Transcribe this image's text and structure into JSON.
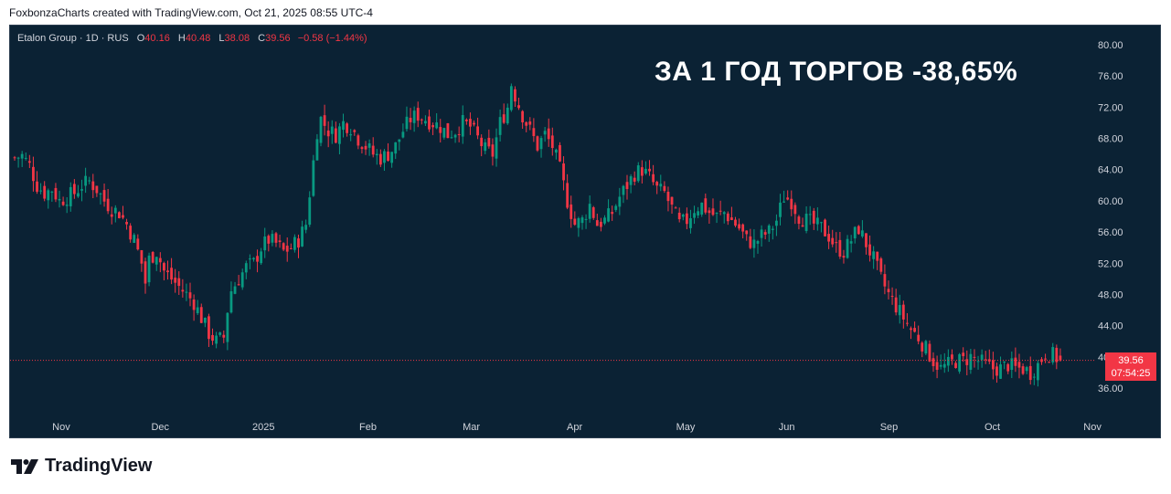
{
  "header": {
    "credit": "FoxbonzaCharts created with TradingView.com, Oct 21, 2025 08:55 UTC-4"
  },
  "legend": {
    "symbol": "Etalon Group · 1D · RUS",
    "open_label": "O",
    "open": "40.16",
    "high_label": "H",
    "high": "40.48",
    "low_label": "L",
    "low": "38.08",
    "close_label": "C",
    "close": "39.56",
    "change": "−0.58 (−1.44%)"
  },
  "overlay": {
    "title": "ЗА 1 ГОД ТОРГОВ -38,65%"
  },
  "price_badge": {
    "price": "39.56",
    "countdown": "07:54:25"
  },
  "footer": {
    "brand": "TradingView"
  },
  "colors": {
    "background": "#0b2234",
    "up": "#089981",
    "down": "#f23645",
    "text": "#d1d4dc"
  },
  "chart_data": {
    "type": "candlestick",
    "y_axis": {
      "min": 34,
      "max": 82,
      "ticks": [
        "80.00",
        "76.00",
        "72.00",
        "68.00",
        "64.00",
        "60.00",
        "56.00",
        "52.00",
        "48.00",
        "44.00",
        "40.00",
        "36.00"
      ]
    },
    "x_axis": {
      "labels": [
        "Nov",
        "Dec",
        "2025",
        "Feb",
        "Mar",
        "Apr",
        "May",
        "Jun",
        "Sep",
        "Oct",
        "Nov"
      ],
      "label_positions": [
        0.047,
        0.138,
        0.233,
        0.329,
        0.424,
        0.519,
        0.621,
        0.714,
        0.808,
        0.903,
        0.995
      ]
    },
    "last_price": 39.56,
    "price_path": [
      [
        0,
        65.5
      ],
      [
        2,
        65.8
      ],
      [
        4,
        64.5
      ],
      [
        6,
        62.0
      ],
      [
        8,
        61.0
      ],
      [
        10,
        61.5
      ],
      [
        12,
        60.0
      ],
      [
        14,
        60.5
      ],
      [
        16,
        61.0
      ],
      [
        18,
        62.0
      ],
      [
        20,
        62.5
      ],
      [
        22,
        61.5
      ],
      [
        24,
        60.0
      ],
      [
        26,
        59.0
      ],
      [
        28,
        58.5
      ],
      [
        30,
        57.0
      ],
      [
        32,
        55.0
      ],
      [
        34,
        52.0
      ],
      [
        35,
        49.5
      ],
      [
        36,
        52.5
      ],
      [
        38,
        53.5
      ],
      [
        40,
        51.0
      ],
      [
        42,
        50.0
      ],
      [
        44,
        49.0
      ],
      [
        46,
        48.0
      ],
      [
        48,
        47.0
      ],
      [
        50,
        45.0
      ],
      [
        52,
        43.0
      ],
      [
        54,
        42.0
      ],
      [
        56,
        42.5
      ],
      [
        57,
        46.0
      ],
      [
        58,
        48.5
      ],
      [
        60,
        50.0
      ],
      [
        62,
        51.5
      ],
      [
        64,
        52.0
      ],
      [
        66,
        54.0
      ],
      [
        68,
        55.0
      ],
      [
        70,
        54.5
      ],
      [
        72,
        53.5
      ],
      [
        74,
        54.0
      ],
      [
        76,
        55.0
      ],
      [
        78,
        57.0
      ],
      [
        79,
        61.0
      ],
      [
        80,
        65.0
      ],
      [
        81,
        69.0
      ],
      [
        82,
        70.5
      ],
      [
        84,
        69.0
      ],
      [
        86,
        68.5
      ],
      [
        88,
        70.0
      ],
      [
        90,
        69.5
      ],
      [
        92,
        68.0
      ],
      [
        94,
        67.0
      ],
      [
        96,
        66.0
      ],
      [
        98,
        65.5
      ],
      [
        100,
        66.0
      ],
      [
        102,
        67.0
      ],
      [
        104,
        69.0
      ],
      [
        106,
        70.5
      ],
      [
        108,
        71.0
      ],
      [
        110,
        70.5
      ],
      [
        112,
        70.0
      ],
      [
        114,
        69.5
      ],
      [
        116,
        68.5
      ],
      [
        118,
        69.0
      ],
      [
        120,
        70.0
      ],
      [
        122,
        69.5
      ],
      [
        124,
        68.0
      ],
      [
        126,
        66.5
      ],
      [
        128,
        66.0
      ],
      [
        130,
        70.0
      ],
      [
        132,
        72.0
      ],
      [
        133,
        75.0
      ],
      [
        134,
        73.5
      ],
      [
        136,
        71.0
      ],
      [
        138,
        69.0
      ],
      [
        140,
        67.0
      ],
      [
        142,
        68.5
      ],
      [
        144,
        67.0
      ],
      [
        146,
        64.0
      ],
      [
        148,
        60.0
      ],
      [
        150,
        57.0
      ],
      [
        152,
        57.5
      ],
      [
        154,
        59.5
      ],
      [
        156,
        57.0
      ],
      [
        158,
        57.5
      ],
      [
        160,
        58.5
      ],
      [
        162,
        60.5
      ],
      [
        164,
        62.0
      ],
      [
        166,
        63.5
      ],
      [
        168,
        64.0
      ],
      [
        170,
        63.0
      ],
      [
        172,
        61.5
      ],
      [
        174,
        61.0
      ],
      [
        176,
        59.0
      ],
      [
        178,
        57.0
      ],
      [
        180,
        57.5
      ],
      [
        182,
        59.0
      ],
      [
        184,
        59.5
      ],
      [
        186,
        58.5
      ],
      [
        188,
        58.0
      ],
      [
        190,
        58.5
      ],
      [
        192,
        57.5
      ],
      [
        194,
        56.5
      ],
      [
        196,
        55.0
      ],
      [
        198,
        54.5
      ],
      [
        200,
        55.5
      ],
      [
        202,
        56.0
      ],
      [
        204,
        57.5
      ],
      [
        206,
        60.5
      ],
      [
        208,
        60.0
      ],
      [
        210,
        58.0
      ],
      [
        212,
        57.5
      ],
      [
        214,
        57.0
      ],
      [
        216,
        56.5
      ],
      [
        218,
        55.5
      ],
      [
        220,
        54.0
      ],
      [
        222,
        53.5
      ],
      [
        224,
        55.0
      ],
      [
        226,
        56.5
      ],
      [
        228,
        54.5
      ],
      [
        230,
        52.5
      ],
      [
        232,
        50.0
      ],
      [
        234,
        48.0
      ],
      [
        236,
        46.5
      ],
      [
        238,
        45.0
      ],
      [
        240,
        43.5
      ],
      [
        242,
        42.5
      ],
      [
        244,
        41.0
      ],
      [
        246,
        39.5
      ],
      [
        248,
        38.5
      ],
      [
        250,
        39.0
      ],
      [
        252,
        39.5
      ],
      [
        254,
        39.5
      ],
      [
        256,
        40.0
      ],
      [
        258,
        39.5
      ],
      [
        260,
        39.0
      ],
      [
        262,
        38.5
      ],
      [
        264,
        38.5
      ],
      [
        266,
        39.0
      ],
      [
        268,
        38.5
      ],
      [
        270,
        38.5
      ],
      [
        272,
        38.0
      ],
      [
        274,
        39.0
      ],
      [
        276,
        40.5
      ],
      [
        278,
        40.2
      ],
      [
        280,
        39.56
      ]
    ]
  }
}
